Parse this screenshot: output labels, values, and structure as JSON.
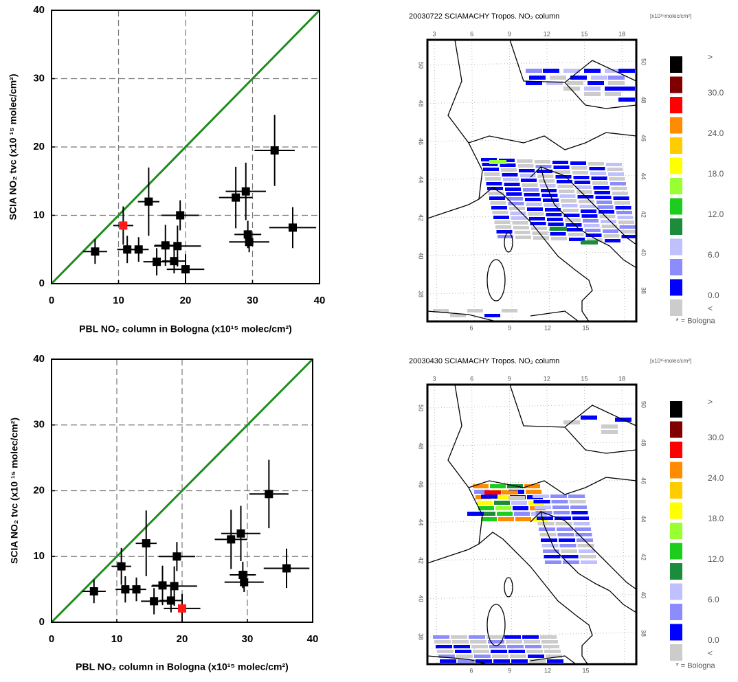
{
  "chart_data": [
    {
      "type": "scatter",
      "x_label": "PBL NO₂ column in Bologna (x10¹⁵ molec/cm²)",
      "y_label": "SCIA NO₂ tvc  (x10 ¹⁵ molec/cm²)",
      "x": [
        6.5,
        10.7,
        11.3,
        13,
        14.5,
        15.7,
        17,
        18.3,
        18.8,
        19.2,
        20,
        27.5,
        29,
        29.3,
        29.5,
        33.3,
        36
      ],
      "y": [
        4.7,
        8.5,
        5,
        5,
        12,
        3.2,
        5.6,
        3.3,
        5.5,
        10,
        2.1,
        12.6,
        13.5,
        7.2,
        6.1,
        19.5,
        8.2
      ],
      "xerr": [
        1.8,
        1.5,
        1.5,
        1.5,
        1.6,
        2,
        1.6,
        1.8,
        3.5,
        2.8,
        2.8,
        2.5,
        3,
        2,
        3,
        3,
        3.5
      ],
      "yerr": [
        1.8,
        2.8,
        2,
        1.8,
        5,
        2,
        3,
        1.8,
        3,
        2.2,
        2.2,
        4.5,
        4.2,
        2,
        1.5,
        5.2,
        3
      ],
      "colors": [
        "#000000",
        "#ff1a1a",
        "#000000",
        "#000000",
        "#000000",
        "#000000",
        "#000000",
        "#000000",
        "#000000",
        "#000000",
        "#000000",
        "#000000",
        "#000000",
        "#000000",
        "#000000",
        "#000000",
        "#000000"
      ],
      "xlim": [
        0,
        40
      ],
      "ylim": [
        0,
        40
      ],
      "xticks": [
        0,
        10,
        20,
        30,
        40
      ],
      "yticks": [
        0,
        10,
        20,
        30,
        40
      ],
      "grid": true,
      "diagonal_color": "#1e8c1e"
    },
    {
      "type": "scatter",
      "x_label": "PBL NO₂ column in Bologna (x10¹⁵ molec/cm²)",
      "y_label": "SCIA NO₂ tvc  (x10 ¹⁵ molec/cm²)",
      "x": [
        6.5,
        10.7,
        11.3,
        13,
        14.5,
        15.7,
        17,
        18.3,
        18.8,
        19.2,
        20,
        27.5,
        29,
        29.3,
        29.5,
        33.3,
        36
      ],
      "y": [
        4.7,
        8.5,
        5,
        5,
        12,
        3.2,
        5.6,
        3.3,
        5.5,
        10,
        2.1,
        12.6,
        13.5,
        7.2,
        6.1,
        19.5,
        8.2
      ],
      "xerr": [
        1.8,
        1.5,
        1.5,
        1.5,
        1.6,
        2,
        1.6,
        1.8,
        3.5,
        2.8,
        2.8,
        2.5,
        3,
        2,
        3,
        3,
        3.5
      ],
      "yerr": [
        1.8,
        2.8,
        2,
        1.8,
        5,
        2,
        3,
        1.8,
        3,
        2.2,
        2.2,
        4.5,
        4.2,
        2,
        1.5,
        5.2,
        3
      ],
      "colors": [
        "#000000",
        "#000000",
        "#000000",
        "#000000",
        "#000000",
        "#000000",
        "#000000",
        "#000000",
        "#000000",
        "#000000",
        "#ff1a1a",
        "#000000",
        "#000000",
        "#000000",
        "#000000",
        "#000000",
        "#000000"
      ],
      "xlim": [
        0,
        40
      ],
      "ylim": [
        0,
        40
      ],
      "xticks": [
        0,
        10,
        20,
        30,
        40
      ],
      "yticks": [
        0,
        10,
        20,
        30,
        40
      ],
      "grid": true,
      "diagonal_color": "#1e8c1e"
    }
  ],
  "maps": [
    {
      "title": "20030722   SCIAMACHY Tropos. NO₂ column",
      "unit": "[x10¹⁵molec/cm²]",
      "lon_top": [
        3,
        6,
        9,
        12,
        15,
        18
      ],
      "lon_bottom": [
        6,
        9,
        12,
        15
      ],
      "lat": [
        38,
        40,
        42,
        44,
        46,
        48,
        50
      ],
      "colorbar_colors": [
        "#000000",
        "#800000",
        "#ff0000",
        "#ff8c00",
        "#ffcc00",
        "#ffff00",
        "#99ff33",
        "#1ecc1e",
        "#1a8c3a",
        "#c0c0ff",
        "#8c8cff",
        "#0000ff",
        "#cccccc"
      ],
      "colorbar_labels": [
        ">",
        "30.0",
        "24.0",
        "18.0",
        "12.0",
        "6.0",
        "0.0",
        "<"
      ],
      "note": "* = Bologna"
    },
    {
      "title": "20030430   SCIAMACHY Tropos. NO₂ column",
      "unit": "[x10¹⁵molec/cm²]",
      "lon_top": [
        3,
        6,
        9,
        12,
        15,
        18
      ],
      "lon_bottom": [
        6,
        9,
        12,
        15
      ],
      "lat": [
        38,
        40,
        42,
        44,
        46,
        48,
        50
      ],
      "colorbar_colors": [
        "#000000",
        "#800000",
        "#ff0000",
        "#ff8c00",
        "#ffcc00",
        "#ffff00",
        "#99ff33",
        "#1ecc1e",
        "#1a8c3a",
        "#c0c0ff",
        "#8c8cff",
        "#0000ff",
        "#cccccc"
      ],
      "colorbar_labels": [
        ">",
        "30.0",
        "24.0",
        "18.0",
        "12.0",
        "6.0",
        "0.0",
        "<"
      ],
      "note": "* = Bologna"
    }
  ]
}
